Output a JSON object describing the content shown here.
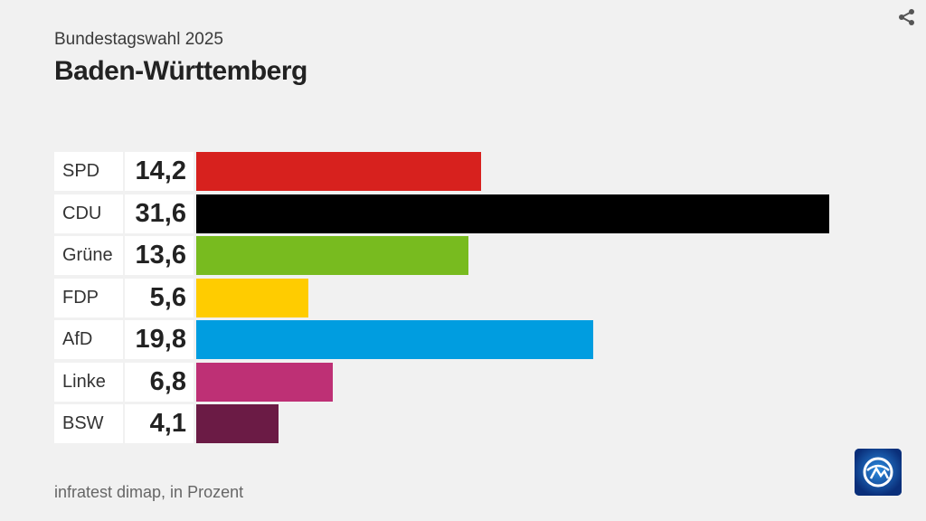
{
  "header": {
    "subtitle": "Bundestagswahl 2025",
    "title": "Baden-Württemberg"
  },
  "footer": {
    "source": "infratest dimap, in Prozent"
  },
  "icons": {
    "share": "share-icon",
    "logo": "tagesschau-logo-icon"
  },
  "chart_data": {
    "type": "bar",
    "orientation": "horizontal",
    "title": "Baden-Württemberg",
    "subtitle": "Bundestagswahl 2025",
    "unit": "Prozent",
    "xlim": [
      0,
      31.6
    ],
    "categories": [
      "SPD",
      "CDU",
      "Grüne",
      "FDP",
      "AfD",
      "Linke",
      "BSW"
    ],
    "values": [
      14.2,
      31.6,
      13.6,
      5.6,
      19.8,
      6.8,
      4.1
    ],
    "labels": [
      "14,2",
      "31,6",
      "13,6",
      "5,6",
      "19,8",
      "6,8",
      "4,1"
    ],
    "colors": [
      "#d7211e",
      "#000000",
      "#78bb1f",
      "#ffcc00",
      "#009de0",
      "#be3075",
      "#6b1b45"
    ]
  }
}
